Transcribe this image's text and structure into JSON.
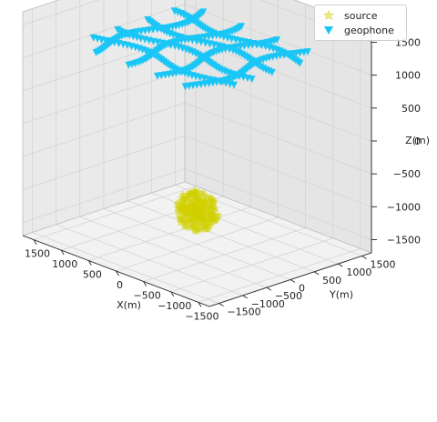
{
  "chart_data": {
    "type": "scatter",
    "projection": "3d",
    "title": "",
    "xlabel": "X(m)",
    "ylabel": "Y(m)",
    "zlabel": "Z(m)",
    "xlim": [
      -1700,
      1700
    ],
    "ylim": [
      -1700,
      1700
    ],
    "zlim": [
      -1700,
      1700
    ],
    "xticks": [
      -1500,
      -1000,
      -500,
      0,
      500,
      1000,
      1500
    ],
    "xticklabels": [
      "−1500",
      "−1000",
      "−500",
      "0",
      "500",
      "1000",
      "1500"
    ],
    "yticks": [
      -1500,
      -1000,
      -500,
      0,
      500,
      1000,
      1500
    ],
    "yticklabels": [
      "−1500",
      "−1000",
      "−500",
      "0",
      "500",
      "1000",
      "1500"
    ],
    "zticks": [
      -1500,
      -1000,
      -500,
      0,
      500,
      1000,
      1500
    ],
    "zticklabels": [
      "−1500",
      "−1000",
      "−500",
      "0",
      "500",
      "1000",
      "1500"
    ],
    "grid": true,
    "legend_position": "top-right",
    "series": [
      {
        "name": "source",
        "marker": "star",
        "color": "#d4d400",
        "center": [
          0,
          0,
          -1200
        ],
        "radius": 300,
        "count": 400
      },
      {
        "name": "geophone",
        "marker": "triangle-down",
        "color": "#1ac6f5",
        "z": 1250,
        "grid_y_lines": [
          -700,
          -200,
          300,
          800
        ],
        "grid_x_lines": [
          -900,
          -300,
          300,
          900
        ],
        "span": [
          -1200,
          1200
        ],
        "spacing": 60
      }
    ]
  }
}
